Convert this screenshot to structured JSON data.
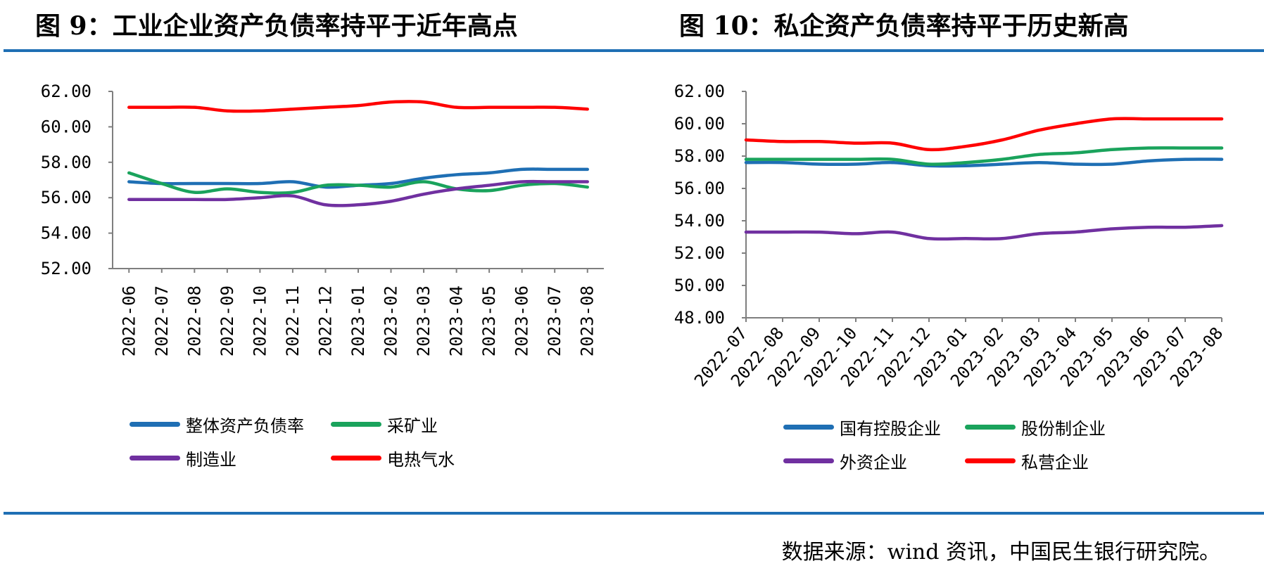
{
  "titles": {
    "left": "图 9：工业企业资产负债率持平于近年高点",
    "right": "图 10：私企资产负债率持平于历史新高"
  },
  "source": "数据来源：wind 资讯，中国民生银行研究院。",
  "colors": {
    "rule": "#1f6fb4"
  },
  "chart_data": [
    {
      "type": "line",
      "title": "图 9：工业企业资产负债率持平于近年高点",
      "categories": [
        "2022-06",
        "2022-07",
        "2022-08",
        "2022-09",
        "2022-10",
        "2022-11",
        "2022-12",
        "2023-01",
        "2023-02",
        "2023-03",
        "2023-04",
        "2023-05",
        "2023-06",
        "2023-07",
        "2023-08"
      ],
      "yticks": [
        "62.00",
        "60.00",
        "58.00",
        "56.00",
        "54.00",
        "52.00"
      ],
      "ylim": [
        52,
        62
      ],
      "series": [
        {
          "name": "整体资产负债率",
          "color": "#1f6fb4",
          "values": [
            56.9,
            56.8,
            56.8,
            56.8,
            56.8,
            56.9,
            56.6,
            56.7,
            56.8,
            57.1,
            57.3,
            57.4,
            57.6,
            57.6,
            57.6
          ]
        },
        {
          "name": "采矿业",
          "color": "#1aa35c",
          "values": [
            57.4,
            56.8,
            56.3,
            56.5,
            56.3,
            56.3,
            56.7,
            56.7,
            56.6,
            56.9,
            56.5,
            56.4,
            56.7,
            56.8,
            56.6
          ]
        },
        {
          "name": "制造业",
          "color": "#7030a0",
          "values": [
            55.9,
            55.9,
            55.9,
            55.9,
            56.0,
            56.1,
            55.6,
            55.6,
            55.8,
            56.2,
            56.5,
            56.7,
            56.9,
            56.9,
            56.9
          ]
        },
        {
          "name": "电热气水",
          "color": "#ff0000",
          "values": [
            61.1,
            61.1,
            61.1,
            60.9,
            60.9,
            61.0,
            61.1,
            61.2,
            61.4,
            61.4,
            61.1,
            61.1,
            61.1,
            61.1,
            61.0
          ]
        }
      ]
    },
    {
      "type": "line",
      "title": "图 10：私企资产负债率持平于历史新高",
      "categories": [
        "2022-07",
        "2022-08",
        "2022-09",
        "2022-10",
        "2022-11",
        "2022-12",
        "2023-01",
        "2023-02",
        "2023-03",
        "2023-04",
        "2023-05",
        "2023-06",
        "2023-07",
        "2023-08"
      ],
      "yticks": [
        "62.00",
        "60.00",
        "58.00",
        "56.00",
        "54.00",
        "52.00",
        "50.00",
        "48.00"
      ],
      "ylim": [
        48,
        62
      ],
      "series": [
        {
          "name": "国有控股企业",
          "color": "#1f6fb4",
          "values": [
            57.6,
            57.6,
            57.5,
            57.5,
            57.6,
            57.4,
            57.4,
            57.5,
            57.6,
            57.5,
            57.5,
            57.7,
            57.8,
            57.8
          ]
        },
        {
          "name": "股份制企业",
          "color": "#1aa35c",
          "values": [
            57.8,
            57.8,
            57.8,
            57.8,
            57.8,
            57.5,
            57.6,
            57.8,
            58.1,
            58.2,
            58.4,
            58.5,
            58.5,
            58.5
          ]
        },
        {
          "name": "外资企业",
          "color": "#7030a0",
          "values": [
            53.3,
            53.3,
            53.3,
            53.2,
            53.3,
            52.9,
            52.9,
            52.9,
            53.2,
            53.3,
            53.5,
            53.6,
            53.6,
            53.7
          ]
        },
        {
          "name": "私营企业",
          "color": "#ff0000",
          "values": [
            59.0,
            58.9,
            58.9,
            58.8,
            58.8,
            58.4,
            58.6,
            59.0,
            59.6,
            60.0,
            60.3,
            60.3,
            60.3,
            60.3
          ]
        }
      ]
    }
  ]
}
